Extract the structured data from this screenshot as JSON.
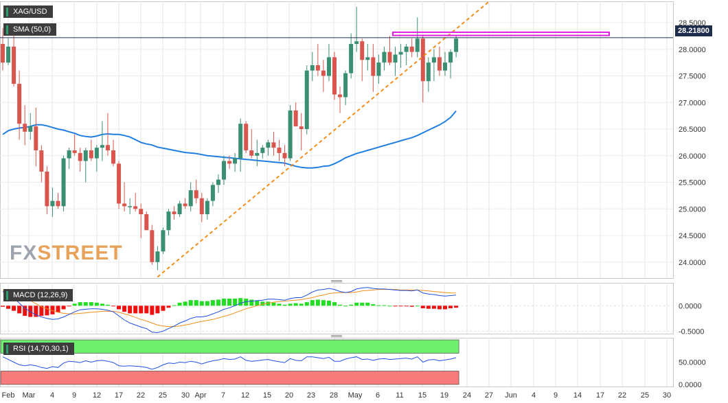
{
  "instrument": "XAG/USD",
  "watermark": {
    "part1": "FX",
    "part2": "STREET"
  },
  "current_price": "28.21800",
  "colors": {
    "up": "#3a8f72",
    "down": "#d9564e",
    "sma": "#1f7fe0",
    "trend": "#f28e1c",
    "resistance": "#e020e0",
    "macd_line": "#1f4fe0",
    "signal_line": "#f28e1c",
    "hist_pos": "#22dd22",
    "hist_neg": "#ee1111",
    "rsi_line": "#1f4fe0",
    "rsi_upper": "#6ef06e",
    "rsi_lower": "#f77b7b",
    "price_line": "#1f2d4d"
  },
  "chart_data": [
    {
      "type": "candlestick",
      "title": "XAG/USD",
      "indicator_label": "SMA (50,0)",
      "x_ticks": [
        "Feb",
        "Mar",
        "4",
        "9",
        "12",
        "17",
        "22",
        "25",
        "30",
        "Apr",
        "7",
        "12",
        "15",
        "20",
        "23",
        "28",
        "May",
        "6",
        "11",
        "15",
        "19",
        "24",
        "27",
        "Jun",
        "4",
        "9",
        "14",
        "17",
        "22",
        "25",
        "30"
      ],
      "y_ticks": [
        "24.0000",
        "24.5000",
        "25.0000",
        "25.5000",
        "26.0000",
        "26.5000",
        "27.0000",
        "27.5000",
        "28.0000",
        "28.5000"
      ],
      "ylim": [
        23.7,
        28.9
      ],
      "candles": [
        [
          28.1,
          28.4,
          27.6,
          27.75
        ],
        [
          27.75,
          28.2,
          27.7,
          28.05
        ],
        [
          28.05,
          28.3,
          27.3,
          27.35
        ],
        [
          27.35,
          27.6,
          26.3,
          26.6
        ],
        [
          26.6,
          26.95,
          26.2,
          26.45
        ],
        [
          26.45,
          26.8,
          26.3,
          26.55
        ],
        [
          26.55,
          26.9,
          25.8,
          26.1
        ],
        [
          26.1,
          26.2,
          25.5,
          25.7
        ],
        [
          25.7,
          25.8,
          24.9,
          25.05
        ],
        [
          25.05,
          25.4,
          24.85,
          25.15
        ],
        [
          25.15,
          25.3,
          25.0,
          25.05
        ],
        [
          25.05,
          26.0,
          24.95,
          25.95
        ],
        [
          25.95,
          26.15,
          25.75,
          26.1
        ],
        [
          26.1,
          26.4,
          26.0,
          26.05
        ],
        [
          26.05,
          26.15,
          25.7,
          25.9
        ],
        [
          25.9,
          26.15,
          25.5,
          26.1
        ],
        [
          26.1,
          26.3,
          25.9,
          25.95
        ],
        [
          25.95,
          26.2,
          25.7,
          26.15
        ],
        [
          26.15,
          26.65,
          25.9,
          26.2
        ],
        [
          26.2,
          26.8,
          26.0,
          26.1
        ],
        [
          26.1,
          26.3,
          25.8,
          25.85
        ],
        [
          25.85,
          25.9,
          25.0,
          25.1
        ],
        [
          25.1,
          25.5,
          24.95,
          25.05
        ],
        [
          25.05,
          25.2,
          24.9,
          25.05
        ],
        [
          25.05,
          25.3,
          24.95,
          25.0
        ],
        [
          25.0,
          25.1,
          24.45,
          24.9
        ],
        [
          24.9,
          24.95,
          24.6,
          24.6
        ],
        [
          24.6,
          24.7,
          23.95,
          24.0
        ],
        [
          24.0,
          24.3,
          23.85,
          24.2
        ],
        [
          24.2,
          24.65,
          24.15,
          24.6
        ],
        [
          24.6,
          25.0,
          24.5,
          24.95
        ],
        [
          24.95,
          25.05,
          24.8,
          24.9
        ],
        [
          24.9,
          25.15,
          24.85,
          25.1
        ],
        [
          25.1,
          25.2,
          25.0,
          25.05
        ],
        [
          25.05,
          25.5,
          24.95,
          25.35
        ],
        [
          25.35,
          25.55,
          25.1,
          25.2
        ],
        [
          25.2,
          25.3,
          24.75,
          24.9
        ],
        [
          24.9,
          25.2,
          24.8,
          25.15
        ],
        [
          25.15,
          25.5,
          25.05,
          25.45
        ],
        [
          25.45,
          25.65,
          25.3,
          25.55
        ],
        [
          25.55,
          26.0,
          25.45,
          25.9
        ],
        [
          25.9,
          26.0,
          25.75,
          25.85
        ],
        [
          25.85,
          26.05,
          25.7,
          25.95
        ],
        [
          25.95,
          26.7,
          25.7,
          26.6
        ],
        [
          26.6,
          26.65,
          26.05,
          26.1
        ],
        [
          26.1,
          26.5,
          25.95,
          26.0
        ],
        [
          26.0,
          26.3,
          25.8,
          26.05
        ],
        [
          26.05,
          26.2,
          25.95,
          26.15
        ],
        [
          26.15,
          26.3,
          26.0,
          26.25
        ],
        [
          26.25,
          26.45,
          26.0,
          26.15
        ],
        [
          26.15,
          26.3,
          25.9,
          26.05
        ],
        [
          26.05,
          26.2,
          25.8,
          25.95
        ],
        [
          25.95,
          26.95,
          25.9,
          26.85
        ],
        [
          26.85,
          27.0,
          26.55,
          26.55
        ],
        [
          26.55,
          26.8,
          26.1,
          26.5
        ],
        [
          26.5,
          27.7,
          26.4,
          27.6
        ],
        [
          27.6,
          27.95,
          27.4,
          27.7
        ],
        [
          27.7,
          28.1,
          27.5,
          27.6
        ],
        [
          27.6,
          27.8,
          27.2,
          27.5
        ],
        [
          27.5,
          28.1,
          27.4,
          27.85
        ],
        [
          27.85,
          27.95,
          27.05,
          27.15
        ],
        [
          27.15,
          27.3,
          26.8,
          27.1
        ],
        [
          27.1,
          27.6,
          26.95,
          27.55
        ],
        [
          27.55,
          28.3,
          27.45,
          28.1
        ],
        [
          28.1,
          28.8,
          27.95,
          28.15
        ],
        [
          28.15,
          28.2,
          27.4,
          27.8
        ],
        [
          27.8,
          28.1,
          27.6,
          27.85
        ],
        [
          27.85,
          28.1,
          27.2,
          27.5
        ],
        [
          27.5,
          27.9,
          27.35,
          27.75
        ],
        [
          27.75,
          28.05,
          27.6,
          27.95
        ],
        [
          27.95,
          28.25,
          27.7,
          27.75
        ],
        [
          27.75,
          28.05,
          27.5,
          27.9
        ],
        [
          27.9,
          28.1,
          27.65,
          27.95
        ],
        [
          27.95,
          28.1,
          27.7,
          28.05
        ],
        [
          28.05,
          28.2,
          27.85,
          27.95
        ],
        [
          27.95,
          28.6,
          27.85,
          28.2
        ],
        [
          28.2,
          28.25,
          27.0,
          27.4
        ],
        [
          27.4,
          27.85,
          27.2,
          27.75
        ],
        [
          27.75,
          28.0,
          27.4,
          27.85
        ],
        [
          27.85,
          28.05,
          27.5,
          27.6
        ],
        [
          27.6,
          27.95,
          27.5,
          27.75
        ],
        [
          27.75,
          28.0,
          27.45,
          27.95
        ],
        [
          27.95,
          28.25,
          27.85,
          28.2
        ]
      ],
      "sma_values": [
        26.4,
        26.47,
        26.5,
        26.52,
        26.53,
        26.55,
        26.58,
        26.58,
        26.56,
        26.53,
        26.5,
        26.48,
        26.45,
        26.42,
        26.38,
        26.36,
        26.35,
        26.37,
        26.4,
        26.41,
        26.4,
        26.4,
        26.38,
        26.35,
        26.3,
        26.25,
        26.22,
        26.2,
        26.16,
        26.14,
        26.12,
        26.1,
        26.08,
        26.06,
        26.05,
        26.04,
        26.02,
        26.0,
        25.99,
        25.98,
        25.97,
        25.96,
        25.95,
        25.94,
        25.93,
        25.92,
        25.91,
        25.9,
        25.89,
        25.88,
        25.87,
        25.86,
        25.83,
        25.8,
        25.78,
        25.77,
        25.77,
        25.78,
        25.8,
        25.81,
        25.85,
        25.9,
        25.96,
        26.0,
        26.04,
        26.07,
        26.1,
        26.13,
        26.16,
        26.19,
        26.22,
        26.25,
        26.28,
        26.31,
        26.34,
        26.38,
        26.43,
        26.48,
        26.53,
        26.58,
        26.64,
        26.72,
        26.84
      ],
      "trendline": {
        "from": {
          "i": 28,
          "v": 23.72
        },
        "to": {
          "i": 88,
          "v": 28.9
        }
      },
      "resistance_band": [
        28.26,
        28.32
      ]
    },
    {
      "type": "macd",
      "indicator_label": "MACD (12,26,9)",
      "y_ticks": [
        "0.0000",
        "-0.5000"
      ],
      "ylim": [
        -0.55,
        0.45
      ],
      "macd": [
        0.28,
        0.22,
        0.15,
        0.05,
        -0.05,
        -0.12,
        -0.18,
        -0.22,
        -0.25,
        -0.27,
        -0.26,
        -0.22,
        -0.17,
        -0.12,
        -0.08,
        -0.07,
        -0.06,
        -0.06,
        -0.07,
        -0.09,
        -0.12,
        -0.2,
        -0.28,
        -0.34,
        -0.38,
        -0.42,
        -0.45,
        -0.52,
        -0.53,
        -0.5,
        -0.45,
        -0.4,
        -0.34,
        -0.3,
        -0.25,
        -0.22,
        -0.22,
        -0.2,
        -0.16,
        -0.12,
        -0.07,
        -0.04,
        0.0,
        0.05,
        0.08,
        0.09,
        0.1,
        0.11,
        0.13,
        0.13,
        0.12,
        0.11,
        0.14,
        0.16,
        0.16,
        0.21,
        0.27,
        0.31,
        0.32,
        0.34,
        0.32,
        0.28,
        0.26,
        0.28,
        0.33,
        0.35,
        0.36,
        0.34,
        0.33,
        0.33,
        0.32,
        0.31,
        0.3,
        0.3,
        0.29,
        0.31,
        0.25,
        0.23,
        0.22,
        0.2,
        0.19,
        0.2,
        0.21
      ],
      "signal": [
        0.3,
        0.28,
        0.25,
        0.2,
        0.15,
        0.1,
        0.04,
        -0.02,
        -0.06,
        -0.1,
        -0.13,
        -0.15,
        -0.16,
        -0.16,
        -0.15,
        -0.14,
        -0.13,
        -0.12,
        -0.11,
        -0.11,
        -0.11,
        -0.13,
        -0.16,
        -0.19,
        -0.23,
        -0.27,
        -0.3,
        -0.34,
        -0.38,
        -0.4,
        -0.41,
        -0.41,
        -0.4,
        -0.38,
        -0.36,
        -0.33,
        -0.31,
        -0.29,
        -0.27,
        -0.24,
        -0.21,
        -0.18,
        -0.14,
        -0.1,
        -0.06,
        -0.03,
        0.0,
        0.03,
        0.05,
        0.07,
        0.08,
        0.09,
        0.1,
        0.11,
        0.12,
        0.14,
        0.16,
        0.19,
        0.21,
        0.24,
        0.25,
        0.26,
        0.26,
        0.26,
        0.27,
        0.29,
        0.3,
        0.31,
        0.32,
        0.32,
        0.32,
        0.32,
        0.31,
        0.31,
        0.31,
        0.31,
        0.3,
        0.29,
        0.28,
        0.27,
        0.26,
        0.25,
        0.25
      ],
      "histogram": [
        -0.02,
        -0.06,
        -0.1,
        -0.15,
        -0.2,
        -0.22,
        -0.22,
        -0.2,
        -0.19,
        -0.17,
        -0.13,
        -0.07,
        -0.01,
        0.04,
        0.07,
        0.07,
        0.07,
        0.06,
        0.04,
        0.02,
        -0.01,
        -0.07,
        -0.12,
        -0.15,
        -0.15,
        -0.15,
        -0.15,
        -0.18,
        -0.15,
        -0.1,
        -0.04,
        0.01,
        0.06,
        0.08,
        0.11,
        0.11,
        0.09,
        0.09,
        0.11,
        0.12,
        0.14,
        0.14,
        0.14,
        0.15,
        0.14,
        0.12,
        0.1,
        0.08,
        0.08,
        0.06,
        0.04,
        0.02,
        0.04,
        0.05,
        0.04,
        0.07,
        0.11,
        0.12,
        0.11,
        0.1,
        0.07,
        0.02,
        0.0,
        0.02,
        0.06,
        0.06,
        0.06,
        0.03,
        0.01,
        0.01,
        0.0,
        -0.01,
        -0.01,
        -0.01,
        -0.02,
        0.0,
        -0.05,
        -0.06,
        -0.06,
        -0.07,
        -0.07,
        -0.05,
        -0.04
      ]
    },
    {
      "type": "rsi",
      "indicator_label": "RSI (14,70,30,1)",
      "y_ticks": [
        "50.0000",
        "0.0000"
      ],
      "ylim": [
        0,
        100
      ],
      "upper_level": 70,
      "lower_level": 30,
      "values": [
        62,
        56,
        50,
        44,
        42,
        44,
        42,
        38,
        36,
        40,
        38,
        48,
        52,
        51,
        49,
        53,
        50,
        53,
        54,
        52,
        49,
        42,
        41,
        42,
        41,
        40,
        38,
        34,
        38,
        44,
        48,
        47,
        50,
        49,
        52,
        50,
        46,
        50,
        53,
        55,
        58,
        56,
        57,
        62,
        54,
        52,
        53,
        55,
        56,
        53,
        51,
        49,
        58,
        54,
        53,
        62,
        62,
        60,
        58,
        61,
        52,
        52,
        57,
        60,
        62,
        56,
        57,
        54,
        57,
        58,
        56,
        57,
        58,
        59,
        57,
        62,
        50,
        55,
        56,
        53,
        55,
        57,
        60
      ]
    }
  ]
}
